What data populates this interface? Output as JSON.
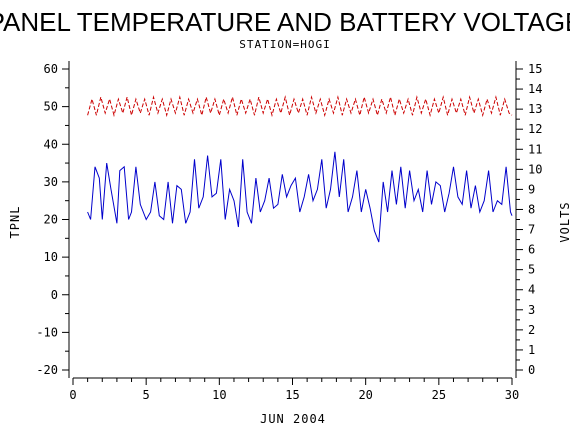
{
  "chart_data": {
    "type": "line",
    "title": "PANEL TEMPERATURE AND BATTERY VOLTAGE",
    "subtitle": "STATION=HOGI",
    "xlabel": "JUN 2004",
    "ylabel_left": "TPNL",
    "ylabel_right": "VOLTS",
    "xlim": [
      0,
      30
    ],
    "ylim_left": [
      -20,
      60
    ],
    "ylim_right": [
      0,
      15
    ],
    "x_ticks": [
      0,
      5,
      10,
      15,
      20,
      25,
      30
    ],
    "y_left_ticks": [
      -20,
      -10,
      0,
      10,
      20,
      30,
      40,
      50,
      60
    ],
    "y_right_ticks": [
      0,
      1,
      2,
      3,
      4,
      5,
      6,
      7,
      8,
      9,
      10,
      11,
      12,
      13,
      14,
      15
    ],
    "series": [
      {
        "axis": "left",
        "color": "#0000cc",
        "style": "solid",
        "x": [
          1.0,
          1.2,
          1.5,
          1.8,
          2.0,
          2.3,
          2.6,
          3.0,
          3.2,
          3.5,
          3.8,
          4.0,
          4.3,
          4.6,
          5.0,
          5.3,
          5.6,
          5.9,
          6.2,
          6.5,
          6.8,
          7.1,
          7.4,
          7.7,
          8.0,
          8.3,
          8.6,
          8.9,
          9.2,
          9.5,
          9.8,
          10.1,
          10.4,
          10.7,
          11.0,
          11.3,
          11.6,
          11.9,
          12.2,
          12.5,
          12.8,
          13.1,
          13.4,
          13.7,
          14.0,
          14.3,
          14.6,
          14.9,
          15.2,
          15.5,
          15.8,
          16.1,
          16.4,
          16.7,
          17.0,
          17.3,
          17.6,
          17.9,
          18.2,
          18.5,
          18.8,
          19.1,
          19.4,
          19.7,
          20.0,
          20.3,
          20.6,
          20.9,
          21.2,
          21.5,
          21.8,
          22.1,
          22.4,
          22.7,
          23.0,
          23.3,
          23.6,
          23.9,
          24.2,
          24.5,
          24.8,
          25.1,
          25.4,
          25.7,
          26.0,
          26.3,
          26.6,
          26.9,
          27.2,
          27.5,
          27.8,
          28.1,
          28.4,
          28.7,
          29.0,
          29.3,
          29.6,
          29.9,
          30.0
        ],
        "y": [
          22,
          20,
          34,
          31,
          20,
          35,
          28,
          19,
          33,
          34,
          20,
          22,
          34,
          24,
          20,
          22,
          30,
          21,
          20,
          30,
          19,
          29,
          28,
          19,
          22,
          36,
          23,
          26,
          37,
          26,
          27,
          36,
          20,
          28,
          25,
          18,
          36,
          22,
          19,
          31,
          22,
          25,
          31,
          23,
          24,
          32,
          26,
          29,
          31,
          22,
          26,
          32,
          25,
          28,
          36,
          23,
          28,
          38,
          26,
          36,
          22,
          26,
          33,
          22,
          28,
          23,
          17,
          14,
          30,
          22,
          33,
          24,
          34,
          23,
          33,
          25,
          28,
          22,
          33,
          24,
          30,
          29,
          22,
          27,
          34,
          26,
          24,
          33,
          23,
          29,
          22,
          25,
          33,
          22,
          25,
          24,
          34,
          22,
          21
        ]
      },
      {
        "axis": "right",
        "color": "#cc0000",
        "style": "dashed",
        "x": [
          1.0,
          1.3,
          1.6,
          1.9,
          2.2,
          2.5,
          2.8,
          3.1,
          3.4,
          3.7,
          4.0,
          4.3,
          4.6,
          4.9,
          5.2,
          5.5,
          5.8,
          6.1,
          6.4,
          6.7,
          7.0,
          7.3,
          7.6,
          7.9,
          8.2,
          8.5,
          8.8,
          9.1,
          9.4,
          9.7,
          10.0,
          10.3,
          10.6,
          10.9,
          11.2,
          11.5,
          11.8,
          12.1,
          12.4,
          12.7,
          13.0,
          13.3,
          13.6,
          13.9,
          14.2,
          14.5,
          14.8,
          15.1,
          15.4,
          15.7,
          16.0,
          16.3,
          16.6,
          16.9,
          17.2,
          17.5,
          17.8,
          18.1,
          18.4,
          18.7,
          19.0,
          19.3,
          19.6,
          19.9,
          20.2,
          20.5,
          20.8,
          21.1,
          21.4,
          21.7,
          22.0,
          22.3,
          22.6,
          22.9,
          23.2,
          23.5,
          23.8,
          24.1,
          24.4,
          24.7,
          25.0,
          25.3,
          25.6,
          25.9,
          26.2,
          26.5,
          26.8,
          27.1,
          27.4,
          27.7,
          28.0,
          28.3,
          28.6,
          28.9,
          29.2,
          29.5,
          29.8,
          30.0
        ],
        "y": [
          12.7,
          13.5,
          12.7,
          13.6,
          12.8,
          13.5,
          12.7,
          13.5,
          12.8,
          13.6,
          12.7,
          13.5,
          12.8,
          13.5,
          12.7,
          13.6,
          12.8,
          13.5,
          12.7,
          13.5,
          12.8,
          13.6,
          12.7,
          13.5,
          12.8,
          13.5,
          12.7,
          13.6,
          12.8,
          13.5,
          12.7,
          13.5,
          12.8,
          13.6,
          12.7,
          13.5,
          12.8,
          13.5,
          12.7,
          13.6,
          12.8,
          13.5,
          12.7,
          13.5,
          12.8,
          13.6,
          12.7,
          13.5,
          12.8,
          13.5,
          12.7,
          13.6,
          12.8,
          13.5,
          12.7,
          13.5,
          12.8,
          13.6,
          12.7,
          13.5,
          12.8,
          13.5,
          12.7,
          13.6,
          12.8,
          13.5,
          12.7,
          13.5,
          12.8,
          13.6,
          12.7,
          13.5,
          12.8,
          13.5,
          12.7,
          13.6,
          12.8,
          13.5,
          12.7,
          13.5,
          12.8,
          13.6,
          12.7,
          13.5,
          12.8,
          13.5,
          12.7,
          13.6,
          12.8,
          13.5,
          12.7,
          13.5,
          12.8,
          13.6,
          12.7,
          13.5,
          12.8,
          12.7
        ]
      }
    ]
  }
}
